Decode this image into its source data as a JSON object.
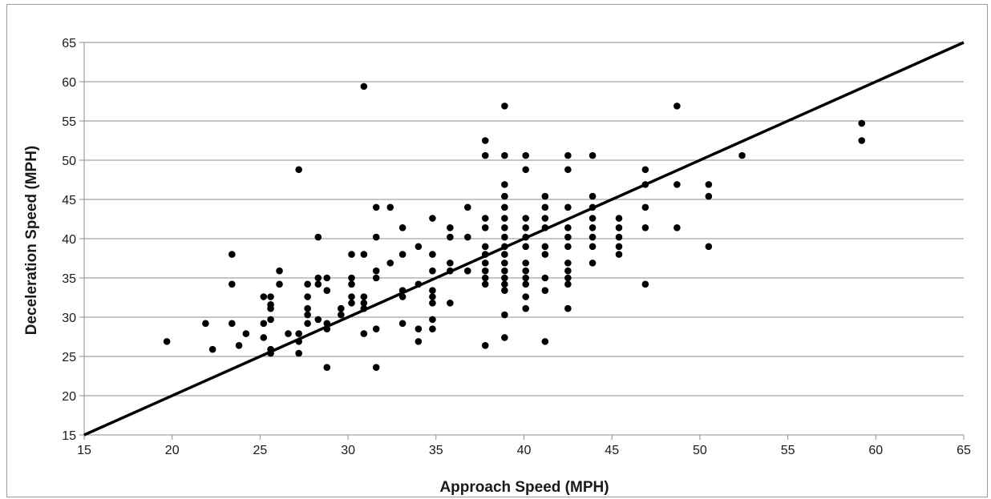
{
  "chart_data": {
    "type": "scatter",
    "xlabel": "Approach Speed (MPH)",
    "ylabel": "Deceleration Speed (MPH)",
    "xlim": [
      15,
      65
    ],
    "ylim": [
      15,
      65
    ],
    "x_ticks": [
      "15",
      "20",
      "25",
      "30",
      "35",
      "40",
      "45",
      "50",
      "55",
      "60",
      "65"
    ],
    "y_ticks": [
      "15",
      "20",
      "25",
      "30",
      "35",
      "40",
      "45",
      "50",
      "55",
      "60",
      "65"
    ],
    "grid": "horizontal",
    "legend": "none",
    "colors": {
      "points": "#000000",
      "line": "#000000",
      "grid": "#8c8c8c",
      "axis": "#8c8c8c"
    },
    "reference_line": {
      "x": [
        15,
        65
      ],
      "y": [
        15,
        65
      ]
    },
    "points": [
      [
        19.7,
        26.9
      ],
      [
        21.9,
        29.2
      ],
      [
        22.3,
        25.9
      ],
      [
        23.4,
        38.0
      ],
      [
        23.4,
        34.2
      ],
      [
        23.4,
        29.2
      ],
      [
        23.8,
        26.4
      ],
      [
        24.2,
        27.9
      ],
      [
        25.2,
        32.6
      ],
      [
        25.2,
        29.2
      ],
      [
        25.2,
        27.4
      ],
      [
        25.6,
        32.6
      ],
      [
        25.6,
        31.6
      ],
      [
        25.6,
        31.1
      ],
      [
        25.6,
        29.7
      ],
      [
        25.6,
        25.9
      ],
      [
        25.6,
        25.4
      ],
      [
        26.1,
        35.9
      ],
      [
        26.1,
        34.2
      ],
      [
        26.6,
        27.9
      ],
      [
        27.2,
        48.8
      ],
      [
        27.2,
        27.9
      ],
      [
        27.2,
        26.9
      ],
      [
        27.2,
        25.4
      ],
      [
        27.7,
        34.2
      ],
      [
        27.7,
        32.6
      ],
      [
        27.7,
        31.1
      ],
      [
        27.7,
        30.3
      ],
      [
        27.7,
        29.2
      ],
      [
        28.3,
        40.2
      ],
      [
        28.3,
        35.0
      ],
      [
        28.3,
        34.2
      ],
      [
        28.3,
        29.7
      ],
      [
        28.8,
        35.0
      ],
      [
        28.8,
        33.4
      ],
      [
        28.8,
        29.2
      ],
      [
        28.8,
        28.5
      ],
      [
        28.8,
        23.6
      ],
      [
        29.6,
        31.1
      ],
      [
        29.6,
        30.3
      ],
      [
        30.2,
        38.0
      ],
      [
        30.2,
        35.0
      ],
      [
        30.2,
        34.2
      ],
      [
        30.2,
        32.6
      ],
      [
        30.2,
        31.8
      ],
      [
        30.9,
        59.4
      ],
      [
        30.9,
        38.0
      ],
      [
        30.9,
        32.6
      ],
      [
        30.9,
        31.8
      ],
      [
        30.9,
        31.1
      ],
      [
        30.9,
        27.9
      ],
      [
        31.6,
        44.0
      ],
      [
        31.6,
        40.2
      ],
      [
        31.6,
        35.9
      ],
      [
        31.6,
        35.0
      ],
      [
        31.6,
        28.5
      ],
      [
        31.6,
        23.6
      ],
      [
        32.4,
        44.0
      ],
      [
        32.4,
        36.9
      ],
      [
        33.1,
        41.4
      ],
      [
        33.1,
        38.0
      ],
      [
        33.1,
        33.4
      ],
      [
        33.1,
        32.6
      ],
      [
        33.1,
        29.2
      ],
      [
        34.0,
        39.0
      ],
      [
        34.0,
        34.2
      ],
      [
        34.0,
        28.5
      ],
      [
        34.0,
        26.9
      ],
      [
        34.8,
        42.6
      ],
      [
        34.8,
        38.0
      ],
      [
        34.8,
        35.9
      ],
      [
        34.8,
        33.4
      ],
      [
        34.8,
        32.6
      ],
      [
        34.8,
        31.8
      ],
      [
        34.8,
        29.7
      ],
      [
        34.8,
        28.5
      ],
      [
        35.8,
        41.4
      ],
      [
        35.8,
        40.2
      ],
      [
        35.8,
        36.9
      ],
      [
        35.8,
        35.9
      ],
      [
        35.8,
        31.8
      ],
      [
        36.8,
        44.0
      ],
      [
        36.8,
        40.2
      ],
      [
        36.8,
        35.9
      ],
      [
        37.8,
        52.5
      ],
      [
        37.8,
        50.6
      ],
      [
        37.8,
        42.6
      ],
      [
        37.8,
        41.4
      ],
      [
        37.8,
        39.0
      ],
      [
        37.8,
        38.0
      ],
      [
        37.8,
        36.9
      ],
      [
        37.8,
        35.9
      ],
      [
        37.8,
        35.0
      ],
      [
        37.8,
        34.2
      ],
      [
        37.8,
        26.4
      ],
      [
        38.9,
        56.9
      ],
      [
        38.9,
        50.6
      ],
      [
        38.9,
        46.9
      ],
      [
        38.9,
        45.4
      ],
      [
        38.9,
        44.0
      ],
      [
        38.9,
        42.6
      ],
      [
        38.9,
        41.4
      ],
      [
        38.9,
        40.2
      ],
      [
        38.9,
        39.0
      ],
      [
        38.9,
        38.0
      ],
      [
        38.9,
        36.9
      ],
      [
        38.9,
        35.9
      ],
      [
        38.9,
        35.0
      ],
      [
        38.9,
        34.2
      ],
      [
        38.9,
        33.4
      ],
      [
        38.9,
        30.3
      ],
      [
        38.9,
        27.4
      ],
      [
        40.1,
        50.6
      ],
      [
        40.1,
        48.8
      ],
      [
        40.1,
        42.6
      ],
      [
        40.1,
        41.4
      ],
      [
        40.1,
        40.2
      ],
      [
        40.1,
        39.0
      ],
      [
        40.1,
        36.9
      ],
      [
        40.1,
        35.9
      ],
      [
        40.1,
        35.0
      ],
      [
        40.1,
        34.2
      ],
      [
        40.1,
        32.6
      ],
      [
        40.1,
        31.1
      ],
      [
        41.2,
        45.4
      ],
      [
        41.2,
        44.0
      ],
      [
        41.2,
        42.6
      ],
      [
        41.2,
        41.4
      ],
      [
        41.2,
        39.0
      ],
      [
        41.2,
        38.0
      ],
      [
        41.2,
        35.0
      ],
      [
        41.2,
        33.4
      ],
      [
        41.2,
        26.9
      ],
      [
        42.5,
        50.6
      ],
      [
        42.5,
        48.8
      ],
      [
        42.5,
        44.0
      ],
      [
        42.5,
        41.4
      ],
      [
        42.5,
        40.2
      ],
      [
        42.5,
        39.0
      ],
      [
        42.5,
        36.9
      ],
      [
        42.5,
        35.9
      ],
      [
        42.5,
        35.0
      ],
      [
        42.5,
        34.2
      ],
      [
        42.5,
        31.1
      ],
      [
        43.9,
        50.6
      ],
      [
        43.9,
        45.4
      ],
      [
        43.9,
        44.0
      ],
      [
        43.9,
        42.6
      ],
      [
        43.9,
        41.4
      ],
      [
        43.9,
        40.2
      ],
      [
        43.9,
        39.0
      ],
      [
        43.9,
        36.9
      ],
      [
        45.4,
        42.6
      ],
      [
        45.4,
        41.4
      ],
      [
        45.4,
        40.2
      ],
      [
        45.4,
        39.0
      ],
      [
        45.4,
        38.0
      ],
      [
        46.9,
        48.8
      ],
      [
        46.9,
        46.9
      ],
      [
        46.9,
        44.0
      ],
      [
        46.9,
        41.4
      ],
      [
        46.9,
        34.2
      ],
      [
        48.7,
        56.9
      ],
      [
        48.7,
        46.9
      ],
      [
        48.7,
        41.4
      ],
      [
        50.5,
        46.9
      ],
      [
        50.5,
        45.4
      ],
      [
        50.5,
        39.0
      ],
      [
        52.4,
        50.6
      ],
      [
        59.2,
        54.7
      ],
      [
        59.2,
        52.5
      ]
    ]
  }
}
